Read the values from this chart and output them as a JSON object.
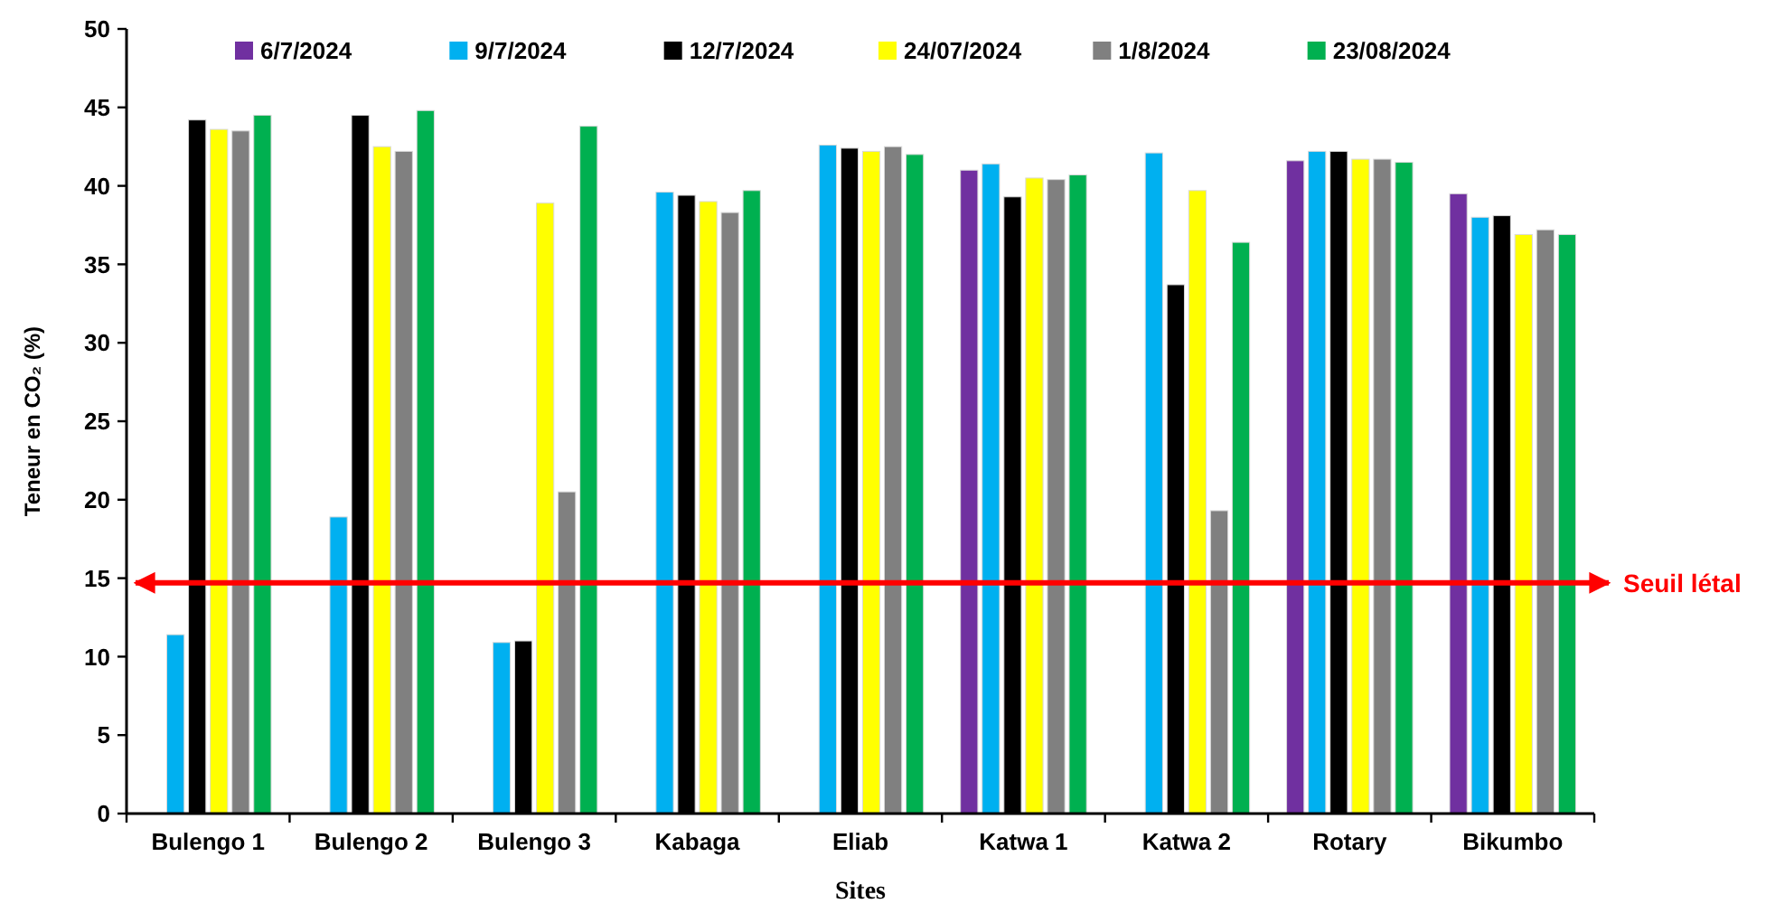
{
  "chart_data": {
    "type": "bar",
    "xlabel": "Sites",
    "ylabel": "Teneur en CO₂ (%)",
    "categories": [
      "Bulengo 1",
      "Bulengo 2",
      "Bulengo 3",
      "Kabaga",
      "Eliab",
      "Katwa 1",
      "Katwa 2",
      "Rotary",
      "Bikumbo"
    ],
    "series": [
      {
        "name": "6/7/2024",
        "color": "#7030a0",
        "values": [
          null,
          null,
          null,
          null,
          null,
          41.0,
          null,
          41.6,
          39.5
        ]
      },
      {
        "name": "9/7/2024",
        "color": "#00b0f0",
        "values": [
          11.4,
          18.9,
          10.9,
          39.6,
          42.6,
          41.4,
          42.1,
          42.2,
          38.0
        ]
      },
      {
        "name": "12/7/2024",
        "color": "#000000",
        "values": [
          44.2,
          44.5,
          11.0,
          39.4,
          42.4,
          39.3,
          33.7,
          42.2,
          38.1
        ]
      },
      {
        "name": "24/07/2024",
        "color": "#ffff00",
        "values": [
          43.6,
          42.5,
          38.9,
          39.0,
          42.2,
          40.5,
          39.7,
          41.7,
          36.9
        ]
      },
      {
        "name": "1/8/2024",
        "color": "#808080",
        "values": [
          43.5,
          42.2,
          20.5,
          38.3,
          42.5,
          40.4,
          19.3,
          41.7,
          37.2
        ]
      },
      {
        "name": "23/08/2024",
        "color": "#00b050",
        "values": [
          44.5,
          44.8,
          43.8,
          39.7,
          42.0,
          40.7,
          36.4,
          41.5,
          36.9
        ]
      }
    ],
    "ylim": [
      0,
      50
    ],
    "yticks": [
      0,
      5,
      10,
      15,
      20,
      25,
      30,
      35,
      40,
      45,
      50
    ],
    "grid": false,
    "legend": "top",
    "ref_lines": [
      {
        "axis": "y",
        "value": 14.7,
        "label": "Seuil létal",
        "color": "#ff0000",
        "line_style": "solid"
      }
    ]
  }
}
